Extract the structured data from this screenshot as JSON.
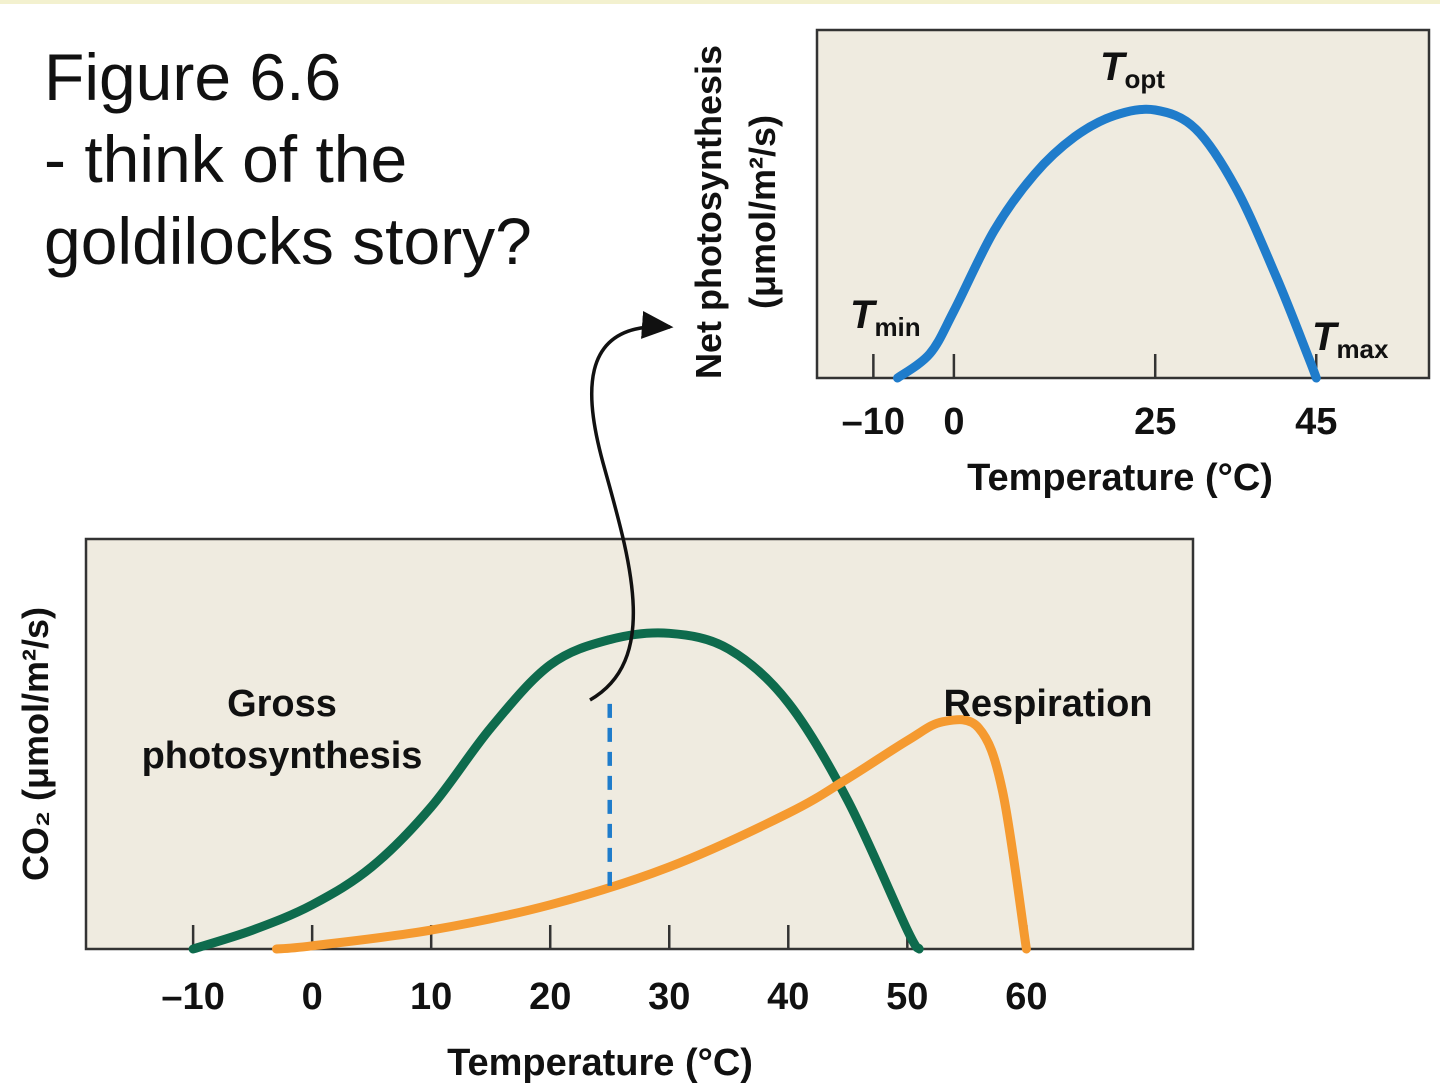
{
  "caption": {
    "line1": "Figure 6.6",
    "line2": "- think of the",
    "line3": "goldilocks story?"
  },
  "colors": {
    "plot_bg": "#efebe0",
    "gross": "#0e6b4d",
    "respiration": "#f59a30",
    "net": "#1f7ccb",
    "dashed": "#1f7ccb",
    "arrow": "#111111"
  },
  "chart_data": [
    {
      "type": "line",
      "title": "",
      "xlabel": "Temperature (°C)",
      "ylabel": "CO₂ (μmol/m²/s)",
      "xticks": [
        -10,
        0,
        10,
        20,
        30,
        40,
        50,
        60
      ],
      "xlim": [
        -19,
        74
      ],
      "ylim": [
        0,
        1
      ],
      "grid": false,
      "series": [
        {
          "name": "Gross photosynthesis",
          "color": "#0e6b4d",
          "x": [
            -10,
            -5,
            0,
            5,
            10,
            15,
            20,
            25,
            30,
            35,
            40,
            45,
            50,
            51
          ],
          "y": [
            0,
            0.06,
            0.14,
            0.26,
            0.45,
            0.7,
            0.9,
            0.98,
            1.0,
            0.95,
            0.78,
            0.47,
            0.06,
            0
          ]
        },
        {
          "name": "Respiration",
          "color": "#f59a30",
          "x": [
            -3,
            0,
            10,
            20,
            30,
            40,
            45,
            50,
            53,
            56,
            58,
            60
          ],
          "y": [
            0,
            0.01,
            0.06,
            0.14,
            0.26,
            0.43,
            0.54,
            0.66,
            0.72,
            0.7,
            0.5,
            0
          ]
        }
      ],
      "marker": {
        "x": 25,
        "y_from": 0.2,
        "y_to": 0.78
      }
    },
    {
      "type": "line",
      "title": "",
      "xlabel": "Temperature (°C)",
      "ylabel_line1": "Net photosynthesis",
      "ylabel_line2": "(μmol/m²/s)",
      "xticks": [
        -10,
        0,
        25,
        45
      ],
      "xlim": [
        -17,
        59
      ],
      "ylim": [
        0,
        1
      ],
      "grid": false,
      "annotations": {
        "tmin": {
          "main": "T",
          "sub": "min"
        },
        "topt": {
          "main": "T",
          "sub": "opt"
        },
        "tmax": {
          "main": "T",
          "sub": "max"
        }
      },
      "series": [
        {
          "name": "",
          "color": "#1f7ccb",
          "x": [
            -7,
            -3,
            0,
            5,
            10,
            15,
            20,
            25,
            30,
            35,
            40,
            44,
            45
          ],
          "y": [
            0,
            0.09,
            0.25,
            0.55,
            0.76,
            0.9,
            0.98,
            1.0,
            0.93,
            0.71,
            0.38,
            0.08,
            0
          ]
        }
      ]
    }
  ]
}
